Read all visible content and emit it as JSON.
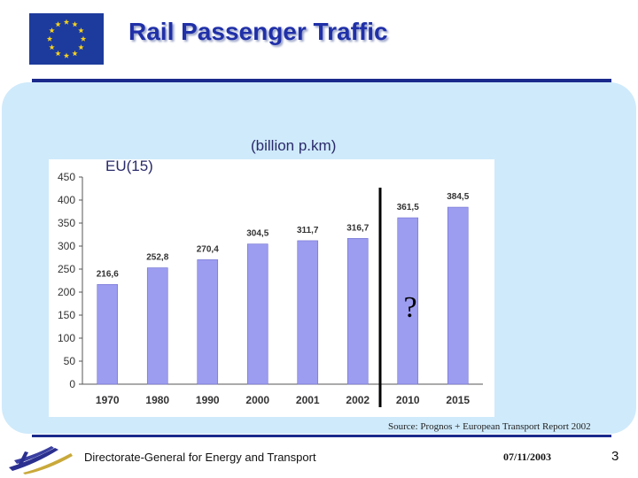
{
  "slide": {
    "title": "Rail Passenger Traffic",
    "source": "Source: Prognos + European Transport Report 2002",
    "footer_org": "Directorate-General for Energy and Transport",
    "date": "07/11/2003",
    "page_number": "3"
  },
  "colors": {
    "bar": "#9c9cf0",
    "bar_edge": "#6f6fd0",
    "title": "#2030a8",
    "panel": "#cfeafb",
    "rule": "#1a2a8c",
    "flag": "#1d3b9c",
    "star": "#f7d21c"
  },
  "chart_data": {
    "type": "bar",
    "title": "(billion p.km)",
    "series_label": "EU(15)",
    "categories": [
      "1970",
      "1980",
      "1990",
      "2000",
      "2001",
      "2002",
      "2010",
      "2015"
    ],
    "values": [
      216.6,
      252.8,
      270.4,
      304.5,
      311.7,
      316.7,
      361.5,
      384.5
    ],
    "value_labels": [
      "216,6",
      "252,8",
      "270,4",
      "304,5",
      "311,7",
      "316,7",
      "361,5",
      "384,5"
    ],
    "yticks": [
      0,
      50,
      100,
      150,
      200,
      250,
      300,
      350,
      400,
      450
    ],
    "ylim": [
      0,
      450
    ],
    "xlabel": "",
    "ylabel": "",
    "grid": false,
    "annotation": "?",
    "forecast_divider_after": "2002"
  }
}
